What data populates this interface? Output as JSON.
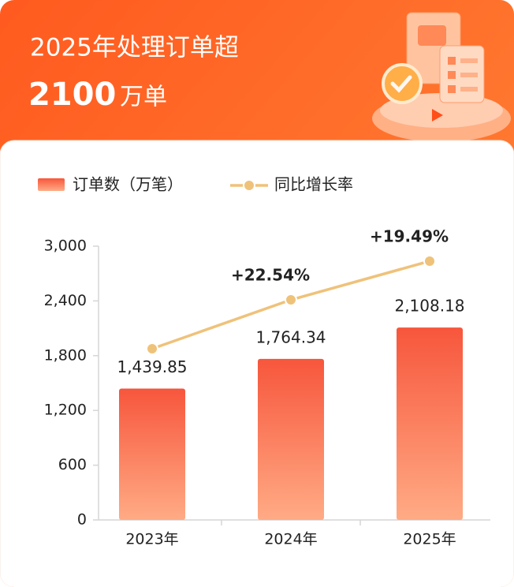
{
  "chart_data": {
    "type": "bar_line",
    "title": "2025年处理订单超",
    "headline": {
      "value": 2100,
      "unit": "万单"
    },
    "categories": [
      "2023年",
      "2024年",
      "2025年"
    ],
    "series": [
      {
        "name": "订单数（万笔）",
        "type": "bar",
        "color": "#f7603f",
        "values": [
          1439.85,
          1764.34,
          2108.18
        ],
        "value_labels": [
          "1,439.85",
          "1,764.34",
          "2,108.18"
        ]
      },
      {
        "name": "同比增长率",
        "type": "line",
        "color": "#efc27a",
        "values": [
          1876,
          2412,
          2836
        ],
        "value_labels": [
          null,
          "+22.54%",
          "+19.49%"
        ]
      }
    ],
    "ylim": [
      0,
      3000
    ],
    "yticks": [
      0,
      600,
      {
        "value": 1200,
        "label": "1,200"
      },
      {
        "value": 1800,
        "label": "1,800"
      },
      {
        "value": 2400,
        "label": "2,400"
      },
      {
        "value": 3000,
        "label": "3,000"
      }
    ],
    "grid": false,
    "legend": "top-left"
  }
}
